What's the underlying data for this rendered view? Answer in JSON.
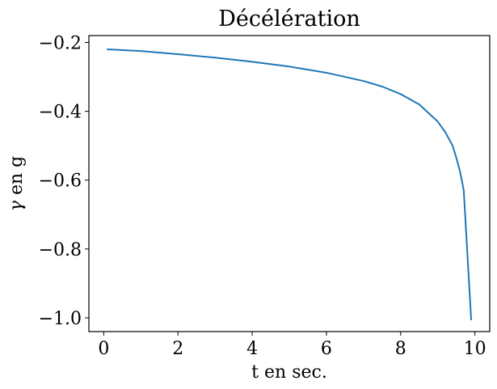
{
  "chart_data": {
    "type": "line",
    "title": "Décélération",
    "xlabel": "t en sec.",
    "ylabel_symbol": "γ",
    "ylabel_rest": " en g",
    "xlim": [
      -0.4,
      10.4
    ],
    "ylim": [
      -1.04,
      -0.18
    ],
    "xticks": [
      0,
      2,
      4,
      6,
      8,
      10
    ],
    "xtick_labels": [
      "0",
      "2",
      "4",
      "6",
      "8",
      "10"
    ],
    "yticks": [
      -0.2,
      -0.4,
      -0.6,
      -0.8,
      -1.0
    ],
    "ytick_labels": [
      "−0.2",
      "−0.4",
      "−0.6",
      "−0.8",
      "−1.0"
    ],
    "grid": false,
    "series": [
      {
        "color": "#1f77b4",
        "x": [
          0.1,
          1.0,
          2.0,
          3.0,
          4.0,
          5.0,
          6.0,
          7.0,
          7.5,
          8.0,
          8.5,
          9.0,
          9.2,
          9.4,
          9.5,
          9.6,
          9.7,
          9.9
        ],
        "y": [
          -0.22,
          -0.225,
          -0.234,
          -0.244,
          -0.256,
          -0.27,
          -0.288,
          -0.312,
          -0.328,
          -0.35,
          -0.38,
          -0.43,
          -0.46,
          -0.5,
          -0.535,
          -0.575,
          -0.63,
          -1.005
        ]
      }
    ]
  }
}
